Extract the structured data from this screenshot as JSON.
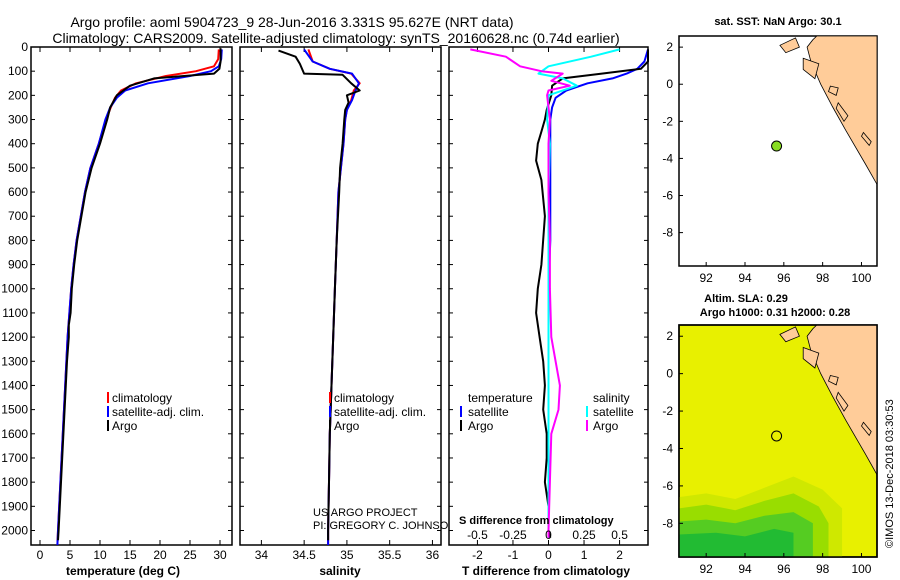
{
  "header": {
    "title_line1": "Argo profile: aoml 5904723_9 28-Jun-2016 3.331S 95.627E (NRT data)",
    "title_line2": "Climatology: CARS2009. Satellite-adjusted climatology: synTS_20160628.nc (0.74d earlier)"
  },
  "colors": {
    "climatology": "#ff0000",
    "satellite": "#0000ff",
    "argo": "#000000",
    "salinity_diff_argo": "#ff00ff",
    "salinity_diff_satellite": "#00ffff",
    "land": "#ffcc99",
    "sla_field": "#e8f000",
    "float_marker": "#88dd22"
  },
  "depth_ticks": [
    "0",
    "100",
    "200",
    "300",
    "400",
    "500",
    "600",
    "700",
    "800",
    "900",
    "1000",
    "1100",
    "1200",
    "1300",
    "1400",
    "1500",
    "1600",
    "1700",
    "1800",
    "1900",
    "2000"
  ],
  "legend1": {
    "climatology": "climatology",
    "satellite": "satellite-adj. clim.",
    "argo": "Argo"
  },
  "legend3": {
    "temperature": "temperature",
    "salinity": "salinity",
    "satellite": "satellite",
    "argo": "Argo"
  },
  "credit": {
    "line1": "US ARGO PROJECT",
    "line2": "PI: GREGORY C. JOHNSON"
  },
  "map1": {
    "title": "sat. SST: NaN Argo: 30.1"
  },
  "map2": {
    "title1": "Altim. SLA: 0.29",
    "title2": "Argo h1000: 0.31 h2000: 0.28"
  },
  "watermark": "©IMOS 13-Dec-2018 03:30:53",
  "chart_data": [
    {
      "type": "line",
      "title": "",
      "xlabel": "temperature (deg C)",
      "ylabel": "",
      "xlim": [
        -1.5,
        32
      ],
      "ylim": [
        2060,
        0
      ],
      "xticks": [
        "0",
        "5",
        "10",
        "15",
        "20",
        "25",
        "30"
      ],
      "series": [
        {
          "name": "climatology",
          "depth": [
            10,
            50,
            80,
            100,
            120,
            150,
            180,
            210,
            250,
            300,
            400,
            500,
            600,
            700,
            800,
            900,
            1000,
            1100,
            1200,
            1300,
            1400,
            1500,
            1600,
            1700,
            1800,
            1900,
            2000,
            2060
          ],
          "values": [
            29.8,
            29.7,
            29,
            26,
            21,
            16,
            13.5,
            12.5,
            11.8,
            11,
            9.8,
            8.4,
            7.5,
            6.8,
            6.1,
            5.6,
            5.2,
            4.9,
            4.6,
            4.4,
            4.2,
            4,
            3.8,
            3.6,
            3.4,
            3.2,
            3,
            2.9
          ]
        },
        {
          "name": "satellite-adj. clim.",
          "depth": [
            10,
            50,
            80,
            100,
            120,
            150,
            180,
            210,
            250,
            300,
            400,
            500,
            600,
            700,
            800,
            900,
            1000,
            1100,
            1200,
            1300,
            1400,
            1500,
            1600,
            1700,
            1800,
            1900,
            2000,
            2060
          ],
          "values": [
            30.3,
            30.2,
            29.8,
            28.5,
            25,
            18,
            14.2,
            12.8,
            11.7,
            10.9,
            9.8,
            8.4,
            7.5,
            6.8,
            6.1,
            5.6,
            5.2,
            4.9,
            4.6,
            4.4,
            4.2,
            4,
            3.8,
            3.6,
            3.4,
            3.2,
            3,
            2.9
          ]
        },
        {
          "name": "Argo",
          "depth": [
            5,
            60,
            90,
            110,
            120,
            130,
            160,
            200,
            250,
            300,
            400,
            500,
            600,
            700,
            800,
            900,
            1000,
            1100,
            1150,
            1200,
            1300,
            1400,
            1500,
            1600,
            1700,
            1800,
            1900,
            2000,
            2040
          ],
          "values": [
            30.1,
            30.1,
            29.9,
            29,
            24,
            19,
            15,
            12.8,
            11.7,
            11.2,
            10,
            8.6,
            7.6,
            6.9,
            6.2,
            5.7,
            5.3,
            5.1,
            4.8,
            4.8,
            4.5,
            4.3,
            4.1,
            3.9,
            3.7,
            3.5,
            3.3,
            3.1,
            3
          ]
        }
      ],
      "legend": "lower-center"
    },
    {
      "type": "line",
      "title": "",
      "xlabel": "salinity",
      "ylabel": "",
      "xlim": [
        33.75,
        36.1
      ],
      "ylim": [
        2060,
        0
      ],
      "xticks": [
        "34",
        "34.5",
        "35",
        "35.5",
        "36"
      ],
      "series": [
        {
          "name": "climatology",
          "depth": [
            10,
            60,
            90,
            110,
            150,
            180,
            220,
            260,
            300,
            400,
            500,
            600,
            800,
            1000,
            1200,
            1400,
            1600,
            1800,
            2000,
            2060
          ],
          "values": [
            34.55,
            34.6,
            34.8,
            35.05,
            35.15,
            35.08,
            35.05,
            35.0,
            34.98,
            34.96,
            34.93,
            34.9,
            34.88,
            34.86,
            34.84,
            34.82,
            34.8,
            34.79,
            34.78,
            34.78
          ]
        },
        {
          "name": "satellite-adj. clim.",
          "depth": [
            10,
            60,
            90,
            110,
            150,
            180,
            220,
            260,
            300,
            400,
            500,
            600,
            800,
            1000,
            1200,
            1400,
            1600,
            1800,
            2000,
            2060
          ],
          "values": [
            34.5,
            34.6,
            34.8,
            35.06,
            35.14,
            35.1,
            35.06,
            35.0,
            34.98,
            34.96,
            34.93,
            34.9,
            34.88,
            34.86,
            34.84,
            34.82,
            34.8,
            34.79,
            34.78,
            34.78
          ]
        },
        {
          "name": "Argo",
          "depth": [
            15,
            40,
            70,
            110,
            115,
            150,
            180,
            200,
            230,
            260,
            300,
            400,
            500,
            600,
            800,
            1000,
            1200,
            1400,
            1600,
            1800,
            2000,
            2040
          ],
          "values": [
            34.2,
            34.4,
            34.45,
            34.5,
            34.95,
            35.05,
            35.15,
            35.0,
            35.02,
            34.98,
            34.97,
            34.95,
            34.92,
            34.91,
            34.88,
            34.86,
            34.84,
            34.82,
            34.8,
            34.79,
            34.78,
            34.78
          ]
        }
      ],
      "legend": "lower-right"
    },
    {
      "type": "line",
      "title": "",
      "xlabel": "T difference from climatology",
      "xlabel_top": "S difference from climatology",
      "ylabel": "",
      "xlim": [
        -2.8,
        2.8
      ],
      "ylim": [
        2060,
        0
      ],
      "xticks": [
        "-2",
        "-1",
        "0",
        "1",
        "2"
      ],
      "xticks_top": [
        "-0.5",
        "-0.25",
        "0",
        "0.25",
        "0.5"
      ],
      "series": [
        {
          "name": "temperature satellite",
          "depth": [
            10,
            60,
            90,
            110,
            130,
            150,
            180,
            210,
            250,
            300,
            400,
            600,
            800,
            1000,
            1200,
            1500,
            1800,
            2000,
            2030
          ],
          "values": [
            2.8,
            2.7,
            2.5,
            2.2,
            1.8,
            1.1,
            0.5,
            0.2,
            0.1,
            0.05,
            0.05,
            0.05,
            0.05,
            0,
            0,
            0,
            0,
            0,
            0
          ]
        },
        {
          "name": "temperature Argo",
          "depth": [
            10,
            60,
            90,
            110,
            130,
            160,
            200,
            260,
            300,
            350,
            400,
            470,
            550,
            700,
            900,
            1000,
            1100,
            1200,
            1300,
            1400,
            1500,
            1600,
            1700,
            1800,
            1900,
            2000,
            2030
          ],
          "values": [
            2.8,
            2.8,
            2.6,
            1.5,
            0.4,
            0.1,
            0.08,
            -0.05,
            -0.1,
            -0.2,
            -0.3,
            -0.35,
            -0.2,
            -0.1,
            -0.2,
            -0.3,
            -0.35,
            -0.25,
            -0.15,
            -0.1,
            -0.15,
            -0.05,
            -0.05,
            -0.1,
            0,
            0,
            0.05
          ]
        },
        {
          "name": "salinity satellite",
          "depth": [
            10,
            40,
            80,
            110,
            130,
            160,
            200,
            300,
            400,
            600,
            800,
            1000,
            1200,
            1400,
            1600,
            1800,
            2000,
            2030
          ],
          "values": [
            0.5,
            0.3,
            0.0,
            -0.07,
            0.1,
            0.2,
            0.0,
            -0.01,
            0.01,
            0.0,
            0.0,
            0.0,
            0.0,
            0.0,
            0.0,
            0.0,
            0.0,
            0.0
          ]
        },
        {
          "name": "salinity Argo",
          "depth": [
            10,
            40,
            80,
            100,
            110,
            140,
            160,
            180,
            200,
            250,
            300,
            400,
            600,
            800,
            1000,
            1200,
            1300,
            1400,
            1500,
            1600,
            1800,
            2000,
            2030
          ],
          "values": [
            -0.55,
            -0.3,
            -0.2,
            -0.05,
            0.1,
            0.02,
            0.15,
            0.0,
            -0.01,
            0.0,
            0.01,
            0.0,
            0.0,
            0.01,
            0.01,
            0.02,
            0.05,
            0.08,
            0.07,
            0.02,
            0.01,
            0.0,
            0.0
          ]
        }
      ],
      "legend": "lower"
    }
  ],
  "maps": {
    "lon_ticks": [
      "92",
      "94",
      "96",
      "98",
      "100"
    ],
    "lat_ticks": [
      "2",
      "0",
      "-2",
      "-4",
      "-6",
      "-8"
    ],
    "lon_range": [
      90.6,
      100.8
    ],
    "lat_range": [
      -9.8,
      2.6
    ],
    "float_position": {
      "lon": 95.627,
      "lat": -3.331
    }
  }
}
